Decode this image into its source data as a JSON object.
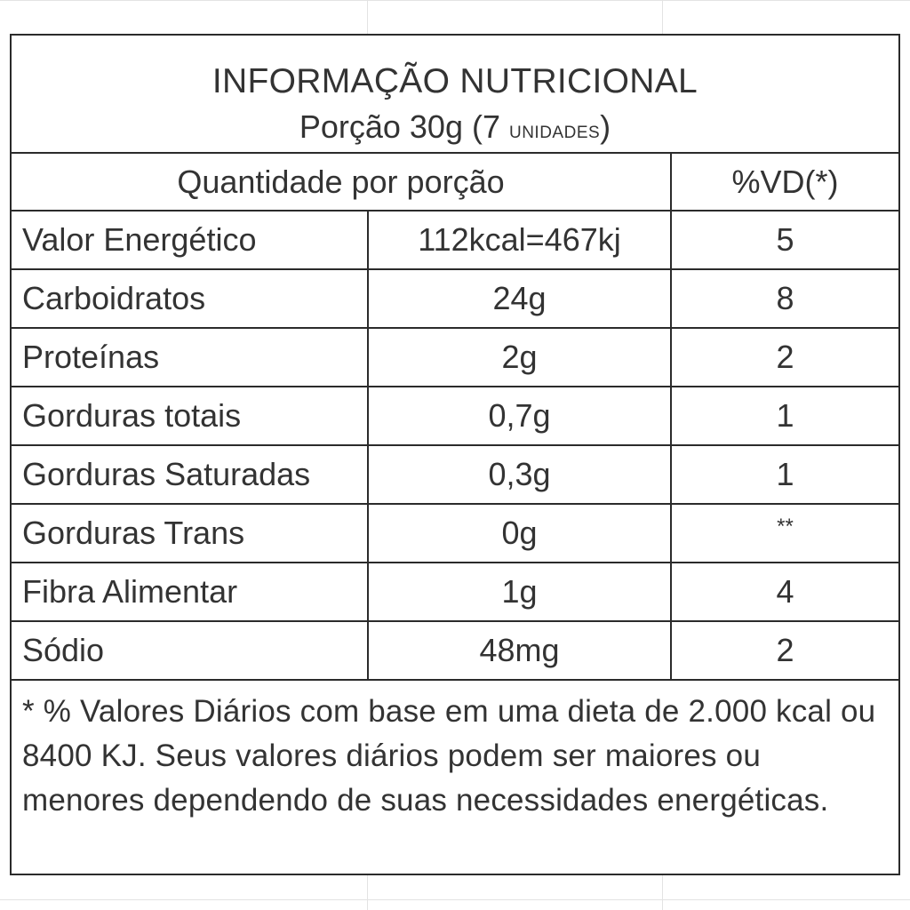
{
  "header": {
    "title": "INFORMAÇÃO NUTRICIONAL",
    "serving_prefix": "Porção 30g (7 ",
    "serving_units": "UNIDADES",
    "serving_suffix": ")"
  },
  "columns": {
    "quantity_label": "Quantidade por porção",
    "dv_label": "%VD(*)"
  },
  "rows": [
    {
      "name": "Valor Energético",
      "amount": "112kcal=467kj",
      "dv": "5"
    },
    {
      "name": "Carboidratos",
      "amount": "24g",
      "dv": "8"
    },
    {
      "name": "Proteínas",
      "amount": "2g",
      "dv": "2"
    },
    {
      "name": "Gorduras totais",
      "amount": "0,7g",
      "dv": "1"
    },
    {
      "name": "Gorduras Saturadas",
      "amount": "0,3g",
      "dv": "1"
    },
    {
      "name": "Gorduras Trans",
      "amount": "0g",
      "dv": "**"
    },
    {
      "name": "Fibra Alimentar",
      "amount": "1g",
      "dv": "4"
    },
    {
      "name": "Sódio",
      "amount": "48mg",
      "dv": "2"
    }
  ],
  "footnote": "* % Valores Diários com base em uma dieta de 2.000 kcal ou 8400 KJ. Seus valores diários podem ser maiores ou menores dependendo de suas necessidades energéticas.",
  "colors": {
    "border": "#2b2b2b",
    "text": "#333333",
    "gridline": "#e3e3e3"
  }
}
